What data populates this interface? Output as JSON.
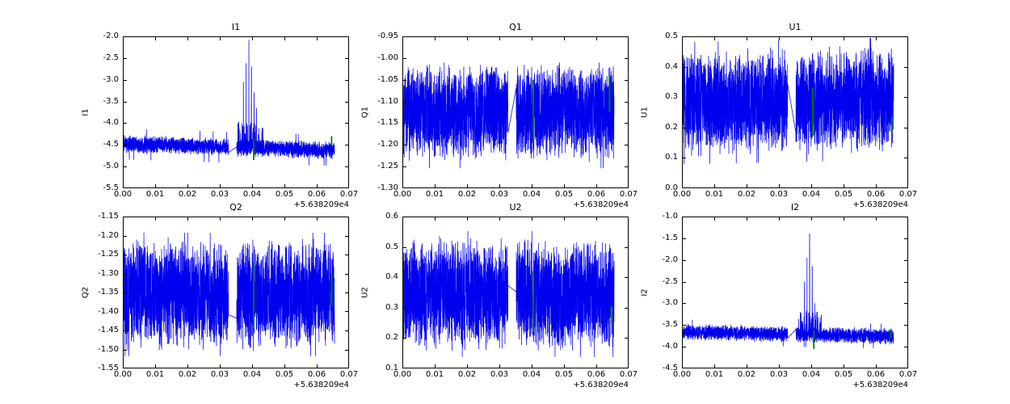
{
  "figure": {
    "background": "#ffffff",
    "line_color": "#0000ee",
    "marker_color": "#008000",
    "axis_color": "#000000"
  },
  "chart_data": [
    {
      "type": "line",
      "title": "I1",
      "ylabel": "I1",
      "x_offset_label": "+5.638209e4",
      "xlim": [
        0,
        0.07
      ],
      "ylim": [
        -5.5,
        -2.0
      ],
      "xtick_labels": [
        "0.00",
        "0.01",
        "0.02",
        "0.03",
        "0.04",
        "0.05",
        "0.06",
        "0.07"
      ],
      "ytick_labels": [
        "-5.5",
        "-5.0",
        "-4.5",
        "-4.0",
        "-3.5",
        "-3.0",
        "-2.5",
        "-2.0"
      ],
      "series": {
        "name": "I1",
        "color": "#0000ee",
        "x_start": 0.0003,
        "x_end": 0.0655,
        "baseline": -4.48,
        "trend": -0.15,
        "noise_amp": 0.21,
        "outlier_prob": 0.006,
        "outlier_scale": 1.7,
        "gap": [
          0.0327,
          0.0352
        ],
        "bump": {
          "x1": 0.0355,
          "x2": 0.0438,
          "lift": 0.6,
          "prob": 0.22
        },
        "spikes": [
          {
            "x": 0.0373,
            "y": -3.05
          },
          {
            "x": 0.0381,
            "y": -2.62
          },
          {
            "x": 0.039,
            "y": -2.08
          },
          {
            "x": 0.0398,
            "y": -2.7
          },
          {
            "x": 0.0406,
            "y": -3.3
          },
          {
            "x": 0.0414,
            "y": -3.65
          }
        ]
      },
      "green_marks": [
        {
          "x": 0.0405,
          "y1": -4.85,
          "y2": -4.35
        },
        {
          "x": 0.0646,
          "y1": -4.52,
          "y2": -4.3
        }
      ]
    },
    {
      "type": "line",
      "title": "Q1",
      "ylabel": "Q1",
      "x_offset_label": "+5.638209e4",
      "xlim": [
        0,
        0.07
      ],
      "ylim": [
        -1.3,
        -0.95
      ],
      "xtick_labels": [
        "0.00",
        "0.01",
        "0.02",
        "0.03",
        "0.04",
        "0.05",
        "0.06",
        "0.07"
      ],
      "ytick_labels": [
        "-1.30",
        "-1.25",
        "-1.20",
        "-1.15",
        "-1.10",
        "-1.05",
        "-1.00",
        "-0.95"
      ],
      "series": {
        "name": "Q1",
        "color": "#0000ee",
        "x_start": 0.0003,
        "x_end": 0.0655,
        "baseline": -1.125,
        "trend": 0,
        "noise_amp": 0.112,
        "outlier_prob": 0.004,
        "outlier_scale": 1.15,
        "gap": [
          0.0327,
          0.0352
        ],
        "spikes": []
      },
      "green_marks": [
        {
          "x": 0.0405,
          "y1": -1.19,
          "y2": -1.05
        },
        {
          "x": 0.0641,
          "y1": -1.125,
          "y2": -1.04
        }
      ]
    },
    {
      "type": "line",
      "title": "U1",
      "ylabel": "U1",
      "x_offset_label": "+5.638209e4",
      "xlim": [
        0,
        0.07
      ],
      "ylim": [
        0.0,
        0.5
      ],
      "xtick_labels": [
        "0.00",
        "0.01",
        "0.02",
        "0.03",
        "0.04",
        "0.05",
        "0.06",
        "0.07"
      ],
      "ytick_labels": [
        "0.0",
        "0.1",
        "0.2",
        "0.3",
        "0.4",
        "0.5"
      ],
      "series": {
        "name": "U1",
        "color": "#0000ee",
        "x_start": 0.0003,
        "x_end": 0.0655,
        "baseline": 0.28,
        "trend": 0.015,
        "noise_amp": 0.175,
        "outlier_prob": 0.004,
        "outlier_scale": 1.15,
        "gap": [
          0.0327,
          0.0352
        ],
        "spikes": []
      },
      "green_marks": [
        {
          "x": 0.0405,
          "y1": 0.17,
          "y2": 0.33
        },
        {
          "x": 0.0649,
          "y1": 0.185,
          "y2": 0.235
        }
      ]
    },
    {
      "type": "line",
      "title": "Q2",
      "ylabel": "Q2",
      "x_offset_label": "+5.638209e4",
      "xlim": [
        0,
        0.07
      ],
      "ylim": [
        -1.55,
        -1.15
      ],
      "xtick_labels": [
        "0.00",
        "0.01",
        "0.02",
        "0.03",
        "0.04",
        "0.05",
        "0.06",
        "0.07"
      ],
      "ytick_labels": [
        "-1.55",
        "-1.50",
        "-1.45",
        "-1.40",
        "-1.35",
        "-1.30",
        "-1.25",
        "-1.20",
        "-1.15"
      ],
      "series": {
        "name": "Q2",
        "color": "#0000ee",
        "x_start": 0.0003,
        "x_end": 0.0655,
        "baseline": -1.355,
        "trend": 0,
        "noise_amp": 0.145,
        "outlier_prob": 0.004,
        "outlier_scale": 1.12,
        "gap": [
          0.0327,
          0.0352
        ],
        "spikes": []
      },
      "green_marks": [
        {
          "x": 0.0405,
          "y1": -1.445,
          "y2": -1.27
        },
        {
          "x": 0.0646,
          "y1": -1.385,
          "y2": -1.3
        }
      ]
    },
    {
      "type": "line",
      "title": "U2",
      "ylabel": "U2",
      "x_offset_label": "+5.638209e4",
      "xlim": [
        0,
        0.07
      ],
      "ylim": [
        0.1,
        0.6
      ],
      "xtick_labels": [
        "0.00",
        "0.01",
        "0.02",
        "0.03",
        "0.04",
        "0.05",
        "0.06",
        "0.07"
      ],
      "ytick_labels": [
        "0.1",
        "0.2",
        "0.3",
        "0.4",
        "0.5",
        "0.6"
      ],
      "series": {
        "name": "U2",
        "color": "#0000ee",
        "x_start": 0.0003,
        "x_end": 0.0655,
        "baseline": 0.345,
        "trend": 0,
        "noise_amp": 0.185,
        "outlier_prob": 0.004,
        "outlier_scale": 1.12,
        "gap": [
          0.0327,
          0.0352
        ],
        "spikes": []
      },
      "green_marks": [
        {
          "x": 0.0405,
          "y1": 0.22,
          "y2": 0.42
        },
        {
          "x": 0.0646,
          "y1": 0.255,
          "y2": 0.305
        }
      ]
    },
    {
      "type": "line",
      "title": "I2",
      "ylabel": "I2",
      "x_offset_label": "+5.638209e4",
      "xlim": [
        0,
        0.07
      ],
      "ylim": [
        -4.5,
        -1.0
      ],
      "xtick_labels": [
        "0.00",
        "0.01",
        "0.02",
        "0.03",
        "0.04",
        "0.05",
        "0.06",
        "0.07"
      ],
      "ytick_labels": [
        "-4.5",
        "-4.0",
        "-3.5",
        "-3.0",
        "-2.5",
        "-2.0",
        "-1.5",
        "-1.0"
      ],
      "series": {
        "name": "I2",
        "color": "#0000ee",
        "x_start": 0.0003,
        "x_end": 0.0655,
        "baseline": -3.66,
        "trend": -0.1,
        "noise_amp": 0.19,
        "outlier_prob": 0.005,
        "outlier_scale": 1.5,
        "gap": [
          0.0327,
          0.0352
        ],
        "bump": {
          "x1": 0.036,
          "x2": 0.0432,
          "lift": 0.55,
          "prob": 0.2
        },
        "spikes": [
          {
            "x": 0.0379,
            "y": -2.5
          },
          {
            "x": 0.0387,
            "y": -1.95
          },
          {
            "x": 0.0395,
            "y": -1.4
          },
          {
            "x": 0.0403,
            "y": -2.15
          },
          {
            "x": 0.0411,
            "y": -3.0
          }
        ]
      },
      "green_marks": [
        {
          "x": 0.0408,
          "y1": -4.05,
          "y2": -3.62
        },
        {
          "x": 0.0646,
          "y1": -3.8,
          "y2": -3.63
        }
      ]
    }
  ]
}
